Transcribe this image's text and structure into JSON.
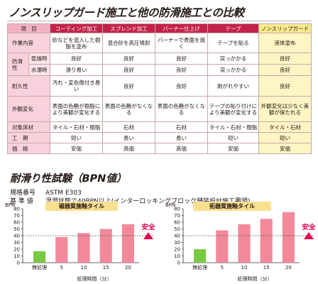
{
  "title": "ノンスリップガード施工と他の防滑施工との比較",
  "table": {
    "header_item": "項　目",
    "columns": [
      "コーティング加工",
      "スプレンド加工",
      "バーナー仕上げ",
      "テープ",
      "ノンスリップガード"
    ],
    "rows": [
      {
        "cat": "作業内容",
        "values": [
          "砂などを混入した樹脂を塗布",
          "混合砂を高圧噴射",
          "バーナーで表面を焼く",
          "テープを貼る",
          "液体塗布"
        ]
      },
      {
        "cat": "防滑性",
        "sub": "乾燥時",
        "values": [
          "良好",
          "良好",
          "良好",
          "突っかかる",
          "良好"
        ]
      },
      {
        "sub": "水濡時",
        "values": [
          "滑り易い",
          "良好",
          "良好",
          "突っかかる",
          "良好"
        ]
      },
      {
        "cat": "耐久性",
        "values": [
          "汚れ・変色傷付き易い",
          "良好",
          "良好",
          "剥がれやすい",
          "良好"
        ]
      },
      {
        "cat": "外観変化",
        "values": [
          "表面の色艶が樹脂により美観が変化する",
          "表面の色艶がなくなる",
          "表面の色艶がなくなる",
          "テープの貼り付けにより美観が変化する",
          "外観変化は少なく美観が保たれる"
        ]
      },
      {
        "cat": "対象床材",
        "values": [
          "タイル・石材・樹脂",
          "石材",
          "石材",
          "タイル・石材・樹脂",
          "タイル・石材"
        ]
      },
      {
        "cat": "工　期",
        "values": [
          "短い",
          "長い",
          "長い",
          "短い",
          "短い"
        ]
      },
      {
        "cat": "価　格",
        "values": [
          "安価",
          "高価",
          "高価",
          "安価",
          "安価"
        ]
      }
    ]
  },
  "section2": {
    "title": "耐滑り性試験（BPN値）",
    "spec_key": "規格番号",
    "spec_val": "ASTM E303",
    "std_key": "基 準 値",
    "std_val": "湿潤状態で40BPN以上(インターロッキングブロック舗装設計施工要領)"
  },
  "chart_data": [
    {
      "type": "bar",
      "title": "磁器質施釉タイル",
      "ylabel": "BPN",
      "xlabel": "処理時間（分）",
      "categories": [
        "無処理",
        "5",
        "10",
        "15",
        "20"
      ],
      "values": [
        17,
        38,
        44,
        50,
        57
      ],
      "ylim": [
        0,
        80
      ],
      "yticks": [
        0,
        10,
        20,
        30,
        40,
        50,
        60,
        70,
        80
      ],
      "threshold": 40,
      "threshold_label": "安全",
      "colors": {
        "untreated": "#7ac943",
        "treated": "#f1899a",
        "threshold_line": "#555555"
      }
    },
    {
      "type": "bar",
      "title": "拓器質施釉タイル",
      "ylabel": "BPN",
      "xlabel": "処理時間（分）",
      "categories": [
        "無処理",
        "5",
        "10",
        "15",
        "20"
      ],
      "values": [
        20,
        48,
        57,
        65,
        75
      ],
      "ylim": [
        0,
        80
      ],
      "yticks": [
        0,
        10,
        20,
        30,
        40,
        50,
        60,
        70,
        80
      ],
      "threshold": 40,
      "threshold_label": "安全",
      "colors": {
        "untreated": "#7ac943",
        "treated": "#f1899a",
        "threshold_line": "#555555"
      }
    }
  ]
}
